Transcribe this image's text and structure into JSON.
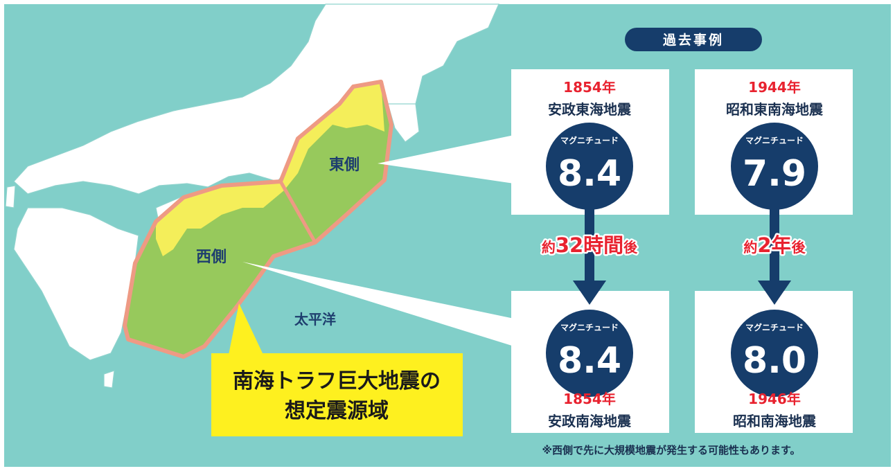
{
  "header": {
    "title": "過去事例"
  },
  "map": {
    "east_label": "東側",
    "west_label": "西側",
    "ocean_label": "太平洋"
  },
  "callout": {
    "lines": [
      "南海トラフ巨大地震の",
      "想定震源域"
    ]
  },
  "events": [
    {
      "year": "1854年",
      "name": "安政東海地震",
      "magnitude_label": "マグニチュード",
      "magnitude": "8.4"
    },
    {
      "year": "1944年",
      "name": "昭和東南海地震",
      "magnitude_label": "マグニチュード",
      "magnitude": "7.9"
    },
    {
      "year": "1854年",
      "name": "安政南海地震",
      "magnitude_label": "マグニチュード",
      "magnitude": "8.4"
    },
    {
      "year": "1946年",
      "name": "昭和南海地震",
      "magnitude_label": "マグニチュード",
      "magnitude": "8.0"
    }
  ],
  "intervals": [
    {
      "prefix": "約",
      "main": "32時間",
      "suffix": "後"
    },
    {
      "prefix": "約",
      "main": "2年",
      "suffix": "後"
    }
  ],
  "note": "※西側で先に大規模地震が発生する可能性もあります。"
}
